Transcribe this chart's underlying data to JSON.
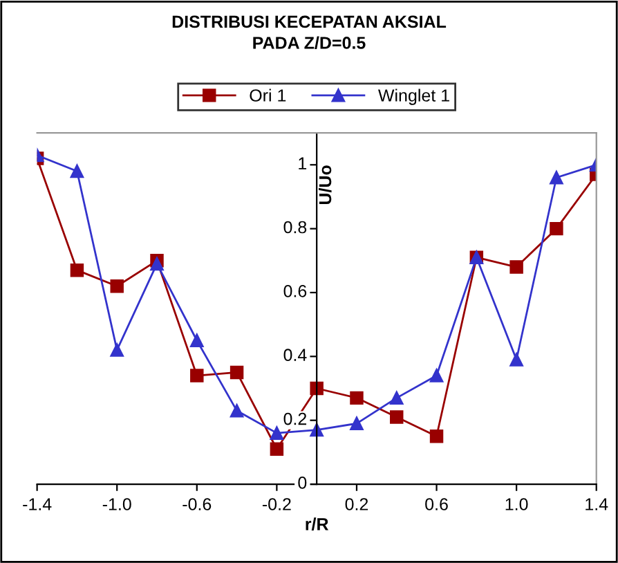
{
  "chart_data": {
    "type": "line",
    "title": "DISTRIBUSI KECEPATAN AKSIAL\nPADA Z/D=0.5",
    "xlabel": "r/R",
    "ylabel": "U/Uo",
    "x": [
      -1.4,
      -1.2,
      -1.0,
      -0.8,
      -0.6,
      -0.4,
      -0.2,
      0.0,
      0.2,
      0.4,
      0.6,
      0.8,
      1.0,
      1.2,
      1.4
    ],
    "series": [
      {
        "name": "Ori 1",
        "color": "#990000",
        "marker": "square",
        "values": [
          1.02,
          0.67,
          0.62,
          0.7,
          0.34,
          0.35,
          0.11,
          0.3,
          0.27,
          0.21,
          0.15,
          0.71,
          0.68,
          0.8,
          0.97
        ]
      },
      {
        "name": "Winglet 1",
        "color": "#3333cc",
        "marker": "triangle",
        "values": [
          1.03,
          0.98,
          0.42,
          0.69,
          0.45,
          0.23,
          0.16,
          0.17,
          0.19,
          0.27,
          0.34,
          0.71,
          0.39,
          0.96,
          1.0
        ]
      }
    ],
    "xlim": [
      -1.4,
      1.4
    ],
    "ylim": [
      0,
      1.1
    ],
    "xticks": [
      {
        "value": -1.4,
        "label": "-1.4"
      },
      {
        "value": -1.0,
        "label": "-1.0"
      },
      {
        "value": -0.6,
        "label": "-0.6"
      },
      {
        "value": -0.2,
        "label": "-0.2"
      },
      {
        "value": 0.2,
        "label": "0.2"
      },
      {
        "value": 0.6,
        "label": "0.6"
      },
      {
        "value": 1.0,
        "label": "1.0"
      },
      {
        "value": 1.4,
        "label": "1.4"
      }
    ],
    "yticks": [
      0,
      0.2,
      0.4,
      0.6,
      0.8,
      1
    ],
    "legend": "top",
    "grid": false
  }
}
